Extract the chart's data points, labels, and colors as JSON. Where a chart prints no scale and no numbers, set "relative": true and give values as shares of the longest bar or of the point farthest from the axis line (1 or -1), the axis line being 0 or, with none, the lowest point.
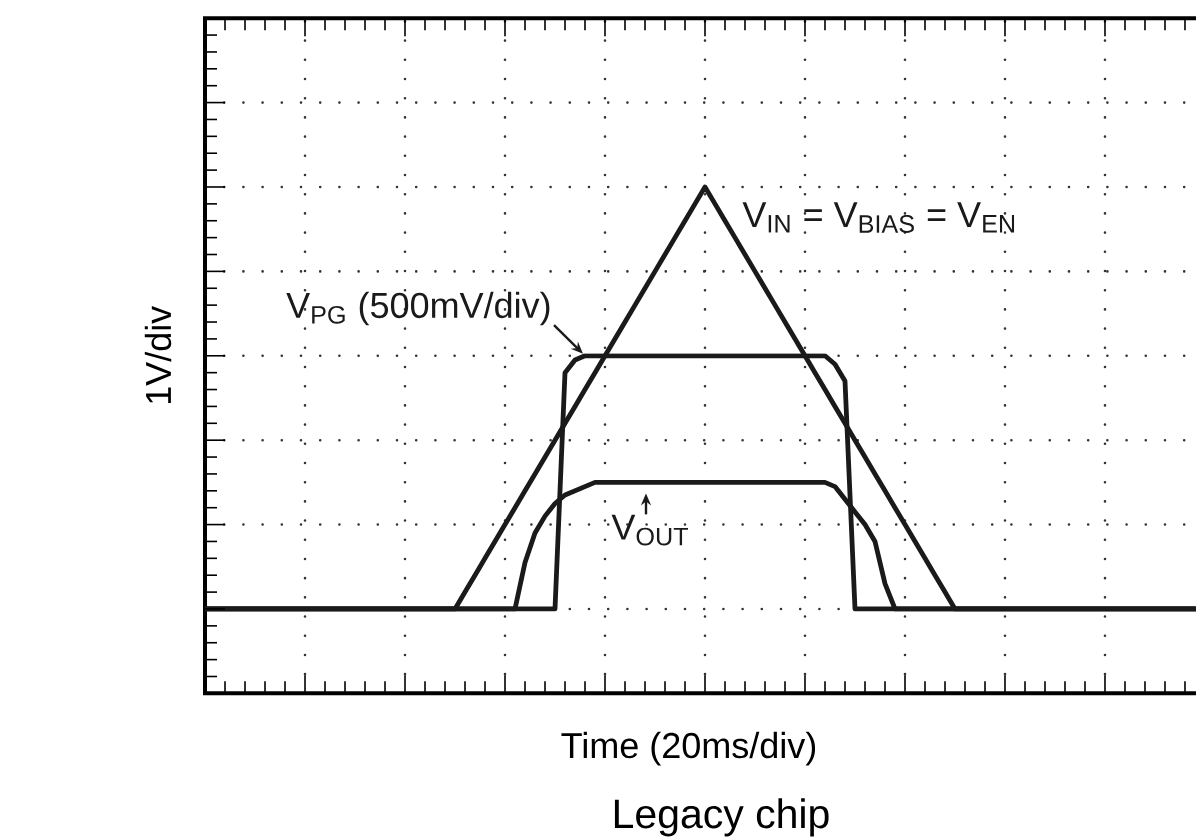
{
  "chart_data": {
    "type": "line",
    "relative": true,
    "xlabel": "Time (20ms/div)",
    "ylabel": "1V/div",
    "annotations": [
      "Legacy chip"
    ],
    "grid": true,
    "categories": [
      null,
      null,
      null,
      null,
      null,
      null,
      null,
      null,
      null,
      null,
      null,
      null,
      null,
      null,
      null,
      null,
      null,
      null,
      null,
      null,
      null,
      null,
      null,
      null,
      null,
      null,
      null,
      null,
      null,
      null,
      null,
      null,
      null,
      null,
      null,
      null,
      null,
      null,
      null,
      null,
      null,
      null,
      null,
      null,
      null,
      null,
      null,
      null,
      null,
      null,
      null,
      null,
      null,
      null,
      null,
      null,
      null,
      null,
      null,
      null,
      null,
      null,
      null,
      null,
      null,
      null,
      null,
      null,
      null,
      null,
      null,
      null,
      null,
      null,
      null,
      null,
      null,
      null,
      null,
      null,
      null,
      null,
      null,
      null,
      null,
      null,
      null,
      null,
      null,
      null,
      null,
      null,
      null,
      null,
      null,
      null,
      null,
      null,
      null,
      null
    ],
    "series": [
      {
        "name": "V$_{IN}$ = V$_{BIAS}$ = V$_{EN}$",
        "color": "#1a1a1a",
        "values": [
          0,
          0,
          0,
          0,
          0,
          0,
          0,
          0,
          0,
          0,
          0,
          0,
          0,
          0,
          0,
          0,
          0,
          0,
          0,
          0,
          0,
          0,
          0,
          0,
          0,
          0,
          0.04,
          0.08,
          0.12,
          0.16,
          0.2,
          0.24,
          0.28,
          0.32,
          0.36,
          0.4,
          0.44,
          0.48,
          0.52,
          0.56,
          0.6,
          0.64,
          0.68,
          0.72,
          0.76,
          0.8,
          0.84,
          0.88,
          0.92,
          0.96,
          1,
          0.96,
          0.92,
          0.88,
          0.84,
          0.8,
          0.76,
          0.72,
          0.68,
          0.64,
          0.6,
          0.56,
          0.52,
          0.48,
          0.44,
          0.4,
          0.36,
          0.32,
          0.28,
          0.24,
          0.2,
          0.16,
          0.12,
          0.08,
          0.04,
          0,
          0,
          0,
          0,
          0,
          0,
          0,
          0,
          0,
          0,
          0,
          0,
          0,
          0,
          0,
          0,
          0,
          0,
          0,
          0,
          0,
          0,
          0,
          0,
          0
        ]
      },
      {
        "name": "V$_{PG}$ (500mV/div)",
        "color": "#1a1a1a",
        "values": [
          0,
          0,
          0,
          0,
          0,
          0,
          0,
          0,
          0,
          0,
          0,
          0,
          0,
          0,
          0,
          0,
          0,
          0,
          0,
          0,
          0,
          0,
          0,
          0,
          0,
          0,
          0,
          0,
          0,
          0,
          0,
          0,
          0,
          0,
          0,
          0,
          0.56,
          0.59,
          0.6,
          0.6,
          0.6,
          0.6,
          0.6,
          0.6,
          0.6,
          0.6,
          0.6,
          0.6,
          0.6,
          0.6,
          0.6,
          0.6,
          0.6,
          0.6,
          0.6,
          0.6,
          0.6,
          0.6,
          0.6,
          0.6,
          0.6,
          0.6,
          0.6,
          0.58,
          0.54,
          0,
          0,
          0,
          0,
          0,
          0,
          0,
          0,
          0,
          0,
          0,
          0,
          0,
          0,
          0,
          0,
          0,
          0,
          0,
          0,
          0,
          0,
          0,
          0,
          0,
          0,
          0,
          0,
          0,
          0,
          0,
          0,
          0,
          0,
          0
        ]
      },
      {
        "name": "V$_{OUT}$",
        "color": "#1a1a1a",
        "values": [
          0,
          0,
          0,
          0,
          0,
          0,
          0,
          0,
          0,
          0,
          0,
          0,
          0,
          0,
          0,
          0,
          0,
          0,
          0,
          0,
          0,
          0,
          0,
          0,
          0,
          0,
          0,
          0,
          0,
          0,
          0,
          0,
          0.11,
          0.18,
          0.22,
          0.25,
          0.27,
          0.28,
          0.29,
          0.3,
          0.3,
          0.3,
          0.3,
          0.3,
          0.3,
          0.3,
          0.3,
          0.3,
          0.3,
          0.3,
          0.3,
          0.3,
          0.3,
          0.3,
          0.3,
          0.3,
          0.3,
          0.3,
          0.3,
          0.3,
          0.3,
          0.3,
          0.3,
          0.29,
          0.26,
          0.23,
          0.2,
          0.16,
          0.06,
          0,
          0,
          0,
          0,
          0,
          0,
          0,
          0,
          0,
          0,
          0,
          0,
          0,
          0,
          0,
          0,
          0,
          0,
          0,
          0,
          0,
          0,
          0,
          0,
          0,
          0,
          0,
          0,
          0,
          0,
          0
        ]
      }
    ]
  }
}
